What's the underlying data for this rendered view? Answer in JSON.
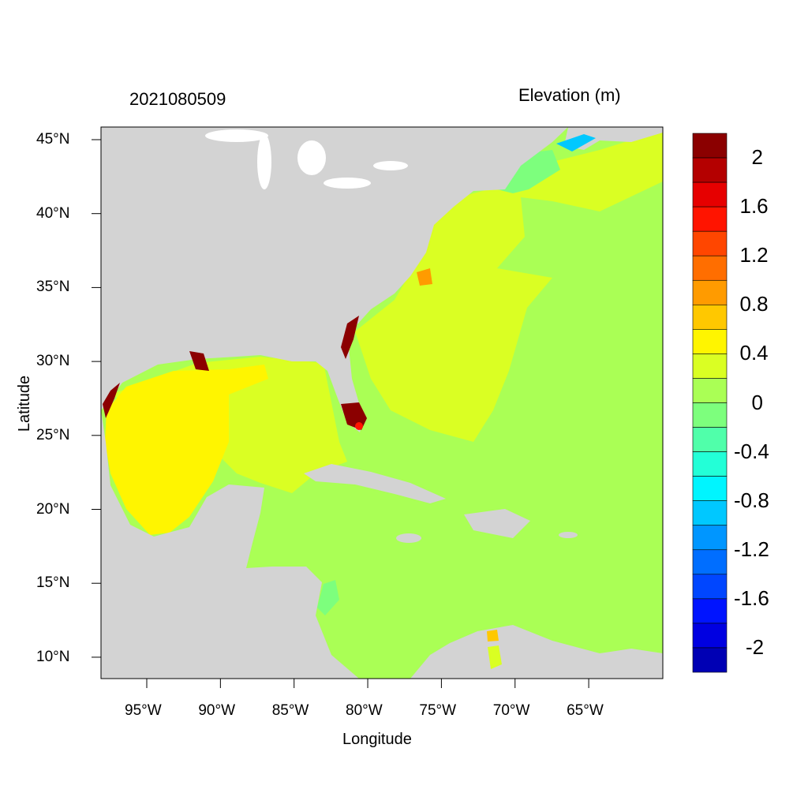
{
  "title_left": "2021080509",
  "title_right": "Elevation (m)",
  "xlabel": "Longitude",
  "ylabel": "Latitude",
  "lat_ticks": [
    {
      "label": "45°N",
      "value": 45
    },
    {
      "label": "40°N",
      "value": 40
    },
    {
      "label": "35°N",
      "value": 35
    },
    {
      "label": "30°N",
      "value": 30
    },
    {
      "label": "25°N",
      "value": 25
    },
    {
      "label": "20°N",
      "value": 20
    },
    {
      "label": "15°N",
      "value": 15
    },
    {
      "label": "10°N",
      "value": 10
    }
  ],
  "lon_ticks": [
    {
      "label": "95°W",
      "value": -95
    },
    {
      "label": "90°W",
      "value": -90
    },
    {
      "label": "85°W",
      "value": -85
    },
    {
      "label": "80°W",
      "value": -80
    },
    {
      "label": "75°W",
      "value": -75
    },
    {
      "label": "70°W",
      "value": -70
    },
    {
      "label": "65°W",
      "value": -65
    }
  ],
  "colorbar": {
    "levels": [
      2,
      1.8,
      1.6,
      1.4,
      1.2,
      1.0,
      0.8,
      0.6,
      0.4,
      0.2,
      0,
      -0.2,
      -0.4,
      -0.6,
      -0.8,
      -1.0,
      -1.2,
      -1.4,
      -1.6,
      -1.8,
      -2
    ],
    "labels": [
      {
        "label": "2",
        "value": 2
      },
      {
        "label": "1.6",
        "value": 1.6
      },
      {
        "label": "1.2",
        "value": 1.2
      },
      {
        "label": "0.8",
        "value": 0.8
      },
      {
        "label": "0.4",
        "value": 0.4
      },
      {
        "label": "0",
        "value": 0
      },
      {
        "label": "-0.4",
        "value": -0.4
      },
      {
        "label": "-0.8",
        "value": -0.8
      },
      {
        "label": "-1.2",
        "value": -1.2
      },
      {
        "label": "-1.6",
        "value": -1.6
      },
      {
        "label": "-2",
        "value": -2
      }
    ],
    "colors": [
      "#8b0000",
      "#b40000",
      "#e60000",
      "#ff1400",
      "#ff4600",
      "#ff6e00",
      "#ff9b00",
      "#ffc800",
      "#fff500",
      "#daff23",
      "#aaff55",
      "#7dff7d",
      "#50ffaa",
      "#23ffd7",
      "#00f5ff",
      "#00c8ff",
      "#0096ff",
      "#006eff",
      "#0046ff",
      "#0014ff",
      "#0000e1",
      "#0000b4"
    ]
  },
  "colors": {
    "land": "#d3d3d3",
    "lake": "#ffffff"
  }
}
